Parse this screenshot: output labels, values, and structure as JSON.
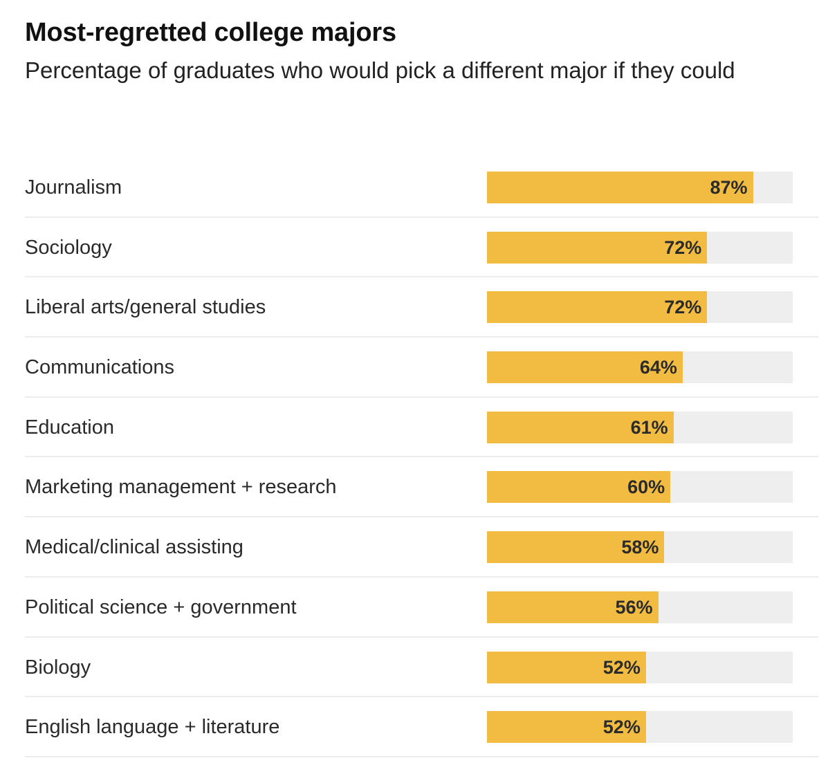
{
  "chart_data": {
    "type": "bar",
    "orientation": "horizontal",
    "title": "Most-regretted college majors",
    "subtitle": "Percentage of graduates who would pick a different major if they could",
    "xlim": [
      0,
      100
    ],
    "grid": false,
    "colors": {
      "bar": "#f1bc41",
      "track": "#eeeeee"
    },
    "categories": [
      "Journalism",
      "Sociology",
      "Liberal arts/general studies",
      "Communications",
      "Education",
      "Marketing management + research",
      "Medical/clinical assisting",
      "Political science + government",
      "Biology",
      "English language + literature"
    ],
    "values": [
      87,
      72,
      72,
      64,
      61,
      60,
      58,
      56,
      52,
      52
    ],
    "value_labels": [
      "87%",
      "72%",
      "72%",
      "64%",
      "61%",
      "60%",
      "58%",
      "56%",
      "52%",
      "52%"
    ]
  }
}
